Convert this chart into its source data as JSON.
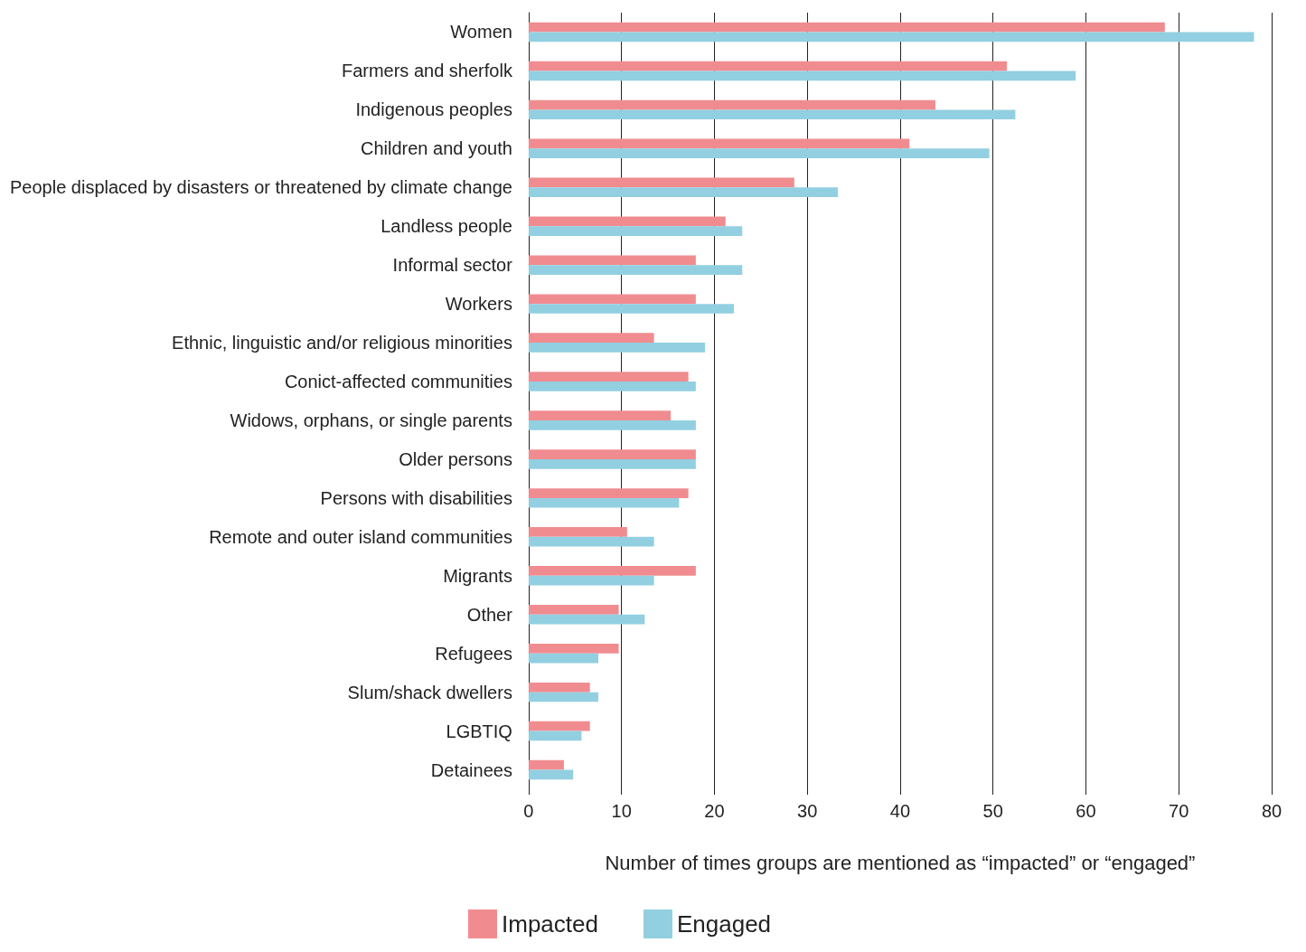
{
  "chart_data": {
    "type": "bar",
    "orientation": "horizontal",
    "xlabel": "Number of times groups are mentioned as “impacted” or “engaged”",
    "categories": [
      "Women",
      "Farmers and sherfolk",
      "Indigenous peoples",
      "Children and youth",
      "People displaced by disasters or threatened by climate change",
      "Landless people",
      "Informal sector",
      "Workers",
      "Ethnic, linguistic and/or religious minorities",
      "Conict-affected communities",
      "Widows, orphans, or single parents",
      "Older persons",
      "Persons with disabilities",
      "Remote and outer island communities",
      "Migrants",
      "Other",
      "Refugees",
      "Slum/shack dwellers",
      "LGBTIQ",
      "Detainees"
    ],
    "series": [
      {
        "name": "Impacted",
        "color": "#f08c90",
        "values": [
          68.5,
          51.5,
          43.8,
          41,
          28.6,
          21.2,
          18,
          18,
          13.5,
          17.2,
          15.3,
          18,
          17.2,
          10.6,
          18,
          9.7,
          9.7,
          6.6,
          6.6,
          3.8
        ]
      },
      {
        "name": "Engaged",
        "color": "#92cfe1",
        "values": [
          78.1,
          58.9,
          52.4,
          49.6,
          33.3,
          23,
          23,
          22.1,
          19,
          18,
          18,
          18,
          16.2,
          13.5,
          13.5,
          12.5,
          7.5,
          7.5,
          5.7,
          4.8
        ]
      }
    ],
    "xlim": [
      0,
      80
    ],
    "xticks": [
      0,
      10,
      20,
      30,
      40,
      50,
      60,
      70,
      80
    ],
    "grid": "x",
    "legend": "bottom"
  }
}
